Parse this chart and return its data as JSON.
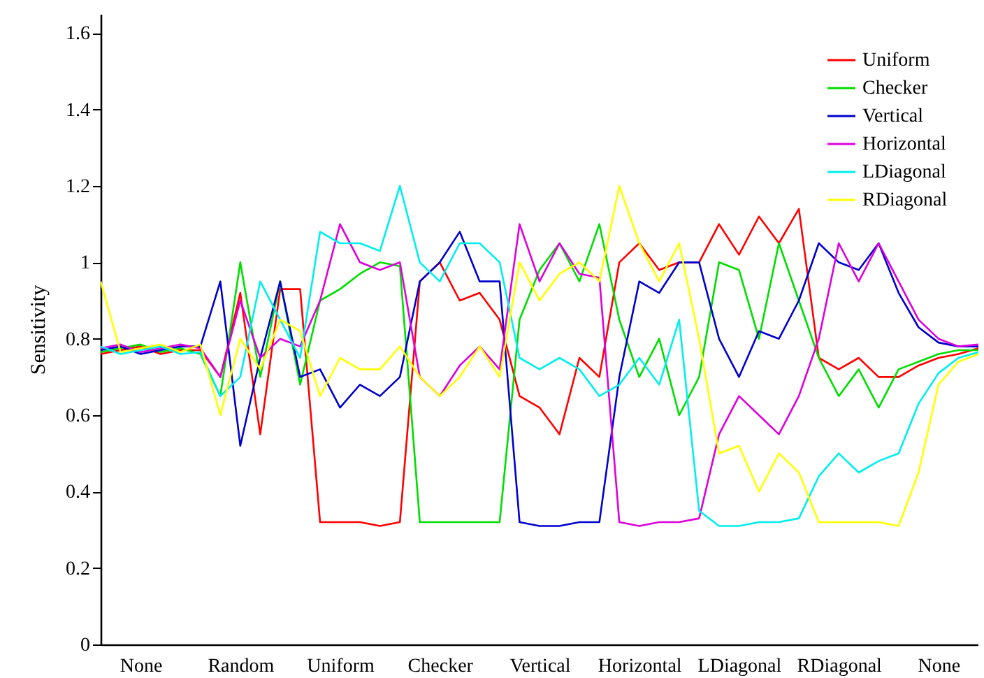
{
  "chart_data": {
    "type": "line",
    "ylabel": "Sensitivity",
    "categories": [
      null,
      null,
      "None",
      null,
      null,
      null,
      null,
      "Random",
      null,
      null,
      null,
      null,
      "Uniform",
      null,
      null,
      null,
      null,
      "Checker",
      null,
      null,
      null,
      null,
      "Vertical",
      null,
      null,
      null,
      null,
      "Horizontal",
      null,
      null,
      null,
      null,
      "LDiagonal",
      null,
      null,
      null,
      null,
      "RDiagonal",
      null,
      null,
      null,
      null,
      "None",
      null,
      null
    ],
    "ylim": [
      0,
      1.65
    ],
    "yticks": [
      0,
      0.2,
      0.4,
      0.6,
      0.8,
      1,
      1.2,
      1.4,
      1.6
    ],
    "legend": "top right",
    "series": [
      {
        "name": "Uniform",
        "color": "#ff0000",
        "values": [
          0.76,
          0.77,
          0.78,
          0.76,
          0.77,
          0.77,
          0.7,
          0.92,
          0.55,
          0.93,
          0.93,
          0.32,
          0.32,
          0.32,
          0.31,
          0.32,
          0.95,
          1.0,
          0.9,
          0.92,
          0.85,
          0.65,
          0.62,
          0.55,
          0.75,
          0.7,
          1.0,
          1.05,
          0.98,
          1.0,
          1.0,
          1.1,
          1.02,
          1.12,
          1.05,
          1.14,
          0.75,
          0.72,
          0.75,
          0.7,
          0.7,
          0.73,
          0.75,
          0.76,
          0.775
        ]
      },
      {
        "name": "Checker",
        "color": "#00dd00",
        "values": [
          0.765,
          0.775,
          0.785,
          0.765,
          0.775,
          0.76,
          0.65,
          1.0,
          0.7,
          0.95,
          0.68,
          0.9,
          0.93,
          0.97,
          1.0,
          0.99,
          0.32,
          0.32,
          0.32,
          0.32,
          0.32,
          0.85,
          0.98,
          1.05,
          0.95,
          1.1,
          0.85,
          0.7,
          0.8,
          0.6,
          0.7,
          1.0,
          0.98,
          0.8,
          1.05,
          0.9,
          0.75,
          0.65,
          0.72,
          0.62,
          0.72,
          0.74,
          0.76,
          0.77,
          0.77
        ]
      },
      {
        "name": "Vertical",
        "color": "#0000cc",
        "values": [
          0.77,
          0.78,
          0.76,
          0.77,
          0.78,
          0.78,
          0.95,
          0.52,
          0.75,
          0.95,
          0.7,
          0.72,
          0.62,
          0.68,
          0.65,
          0.7,
          0.95,
          1.0,
          1.08,
          0.95,
          0.95,
          0.32,
          0.31,
          0.31,
          0.32,
          0.32,
          0.7,
          0.95,
          0.92,
          1.0,
          1.0,
          0.8,
          0.7,
          0.82,
          0.8,
          0.9,
          1.05,
          1.0,
          0.98,
          1.05,
          0.92,
          0.83,
          0.79,
          0.78,
          0.78
        ]
      },
      {
        "name": "Horizontal",
        "color": "#dd00dd",
        "values": [
          0.775,
          0.785,
          0.765,
          0.775,
          0.785,
          0.775,
          0.7,
          0.9,
          0.75,
          0.8,
          0.78,
          0.9,
          1.1,
          1.0,
          0.98,
          1.0,
          0.7,
          0.65,
          0.73,
          0.78,
          0.72,
          1.1,
          0.95,
          1.05,
          0.97,
          0.96,
          0.32,
          0.31,
          0.32,
          0.32,
          0.33,
          0.55,
          0.65,
          0.6,
          0.55,
          0.65,
          0.8,
          1.05,
          0.95,
          1.05,
          0.95,
          0.85,
          0.8,
          0.78,
          0.785
        ]
      },
      {
        "name": "LDiagonal",
        "color": "#00eeee",
        "values": [
          0.78,
          0.76,
          0.77,
          0.78,
          0.76,
          0.765,
          0.65,
          0.7,
          0.95,
          0.85,
          0.75,
          1.08,
          1.05,
          1.05,
          1.03,
          1.2,
          1.0,
          0.95,
          1.05,
          1.05,
          1.0,
          0.75,
          0.72,
          0.75,
          0.72,
          0.65,
          0.68,
          0.75,
          0.68,
          0.85,
          0.35,
          0.31,
          0.31,
          0.32,
          0.32,
          0.33,
          0.44,
          0.5,
          0.45,
          0.48,
          0.5,
          0.63,
          0.71,
          0.75,
          0.765
        ]
      },
      {
        "name": "RDiagonal",
        "color": "#ffff00",
        "values": [
          0.95,
          0.765,
          0.775,
          0.785,
          0.765,
          0.785,
          0.6,
          0.8,
          0.72,
          0.85,
          0.82,
          0.65,
          0.75,
          0.72,
          0.72,
          0.78,
          0.7,
          0.65,
          0.7,
          0.78,
          0.7,
          1.0,
          0.9,
          0.97,
          1.0,
          0.95,
          1.2,
          1.05,
          0.95,
          1.05,
          0.8,
          0.5,
          0.52,
          0.4,
          0.5,
          0.45,
          0.32,
          0.32,
          0.32,
          0.32,
          0.31,
          0.45,
          0.68,
          0.74,
          0.76
        ]
      }
    ]
  }
}
